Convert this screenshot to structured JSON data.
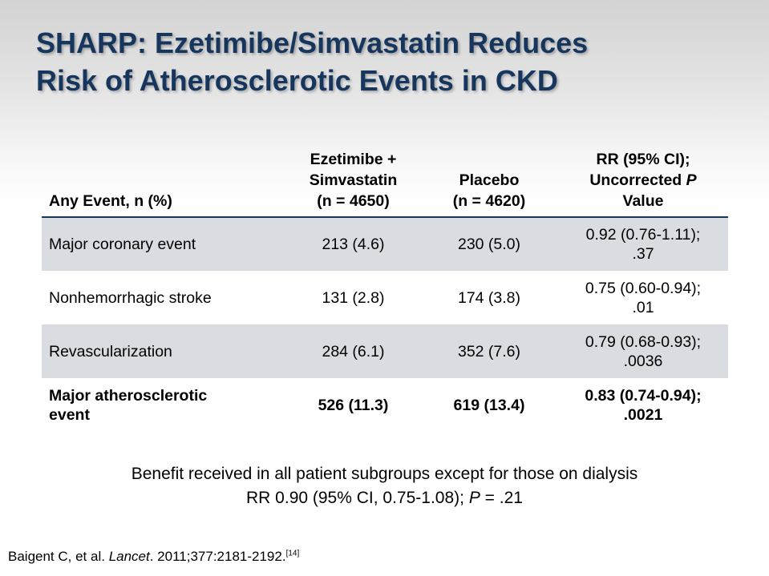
{
  "title": {
    "line1": "SHARP: Ezetimibe/Simvastatin Reduces",
    "line2": "Risk of Atherosclerotic Events in CKD"
  },
  "table": {
    "headers": [
      [
        "Any Event, n (%)"
      ],
      [
        "Ezetimibe +",
        "Simvastatin",
        "(n = 4650)"
      ],
      [
        "Placebo",
        "(n = 4620)"
      ],
      [
        "RR (95% CI);",
        "Uncorrected ",
        "P",
        "Value"
      ]
    ],
    "rows": [
      {
        "label": [
          "Major coronary event"
        ],
        "ezesimva": "213 (4.6)",
        "placebo": "230 (5.0)",
        "rr": [
          "0.92 (0.76-1.11);",
          ".37"
        ]
      },
      {
        "label": [
          "Nonhemorrhagic stroke"
        ],
        "ezesimva": "131 (2.8)",
        "placebo": "174 (3.8)",
        "rr": [
          "0.75 (0.60-0.94);",
          ".01"
        ]
      },
      {
        "label": [
          "Revascularization"
        ],
        "ezesimva": "284 (6.1)",
        "placebo": "352 (7.6)",
        "rr": [
          "0.79 (0.68-0.93);",
          ".0036"
        ]
      },
      {
        "label": [
          "Major atherosclerotic",
          "event"
        ],
        "ezesimva": "526 (11.3)",
        "placebo": "619 (13.4)",
        "rr": [
          "0.83 (0.74-0.94);",
          ".0021"
        ]
      }
    ]
  },
  "note": {
    "line1": "Benefit received in all patient subgroups except for those on dialysis",
    "line2_prefix": "RR 0.90 (95% CI, 0.75-1.08); ",
    "line2_italic": "P",
    "line2_suffix": " = .21"
  },
  "citation": {
    "authors": "Baigent C, et al. ",
    "journal": "Lancet",
    "details": ". 2011;377:2181-2192.",
    "ref": "[14]"
  }
}
